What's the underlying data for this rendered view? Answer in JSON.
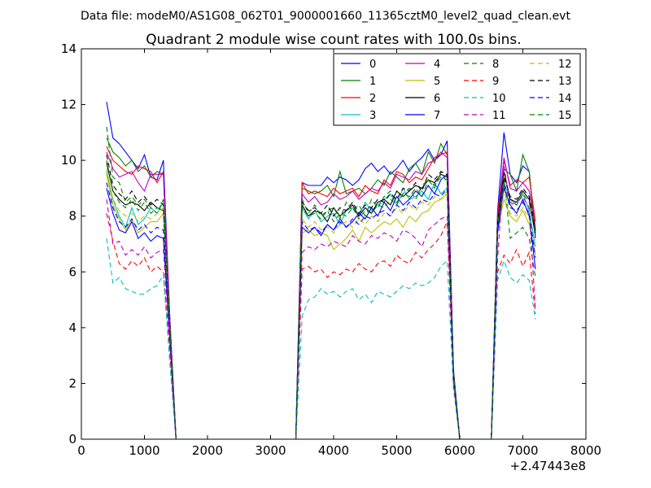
{
  "header": {
    "data_file_label": "Data file: modeM0/AS1G08_062T01_9000001660_11365cztM0_level2_quad_clean.evt"
  },
  "chart_data": {
    "type": "line",
    "title": "Quadrant 2 module wise count rates with 100.0s bins.",
    "xlabel": "",
    "ylabel": "",
    "xlim": [
      0,
      8000
    ],
    "ylim": [
      0,
      14
    ],
    "x_offset_label": "+2.47443e8",
    "xticks": [
      "0",
      "1000",
      "2000",
      "3000",
      "4000",
      "5000",
      "6000",
      "7000",
      "8000"
    ],
    "yticks": [
      "0",
      "2",
      "4",
      "6",
      "8",
      "10",
      "12",
      "14"
    ],
    "grid": false,
    "legend_position": "top-right",
    "legend_columns": 4,
    "x": [
      400,
      500,
      600,
      700,
      800,
      900,
      1000,
      1100,
      1200,
      1300,
      1400,
      1500,
      1600,
      1700,
      1800,
      1900,
      2000,
      2100,
      2200,
      2300,
      2400,
      2500,
      2600,
      2700,
      2800,
      2900,
      3000,
      3100,
      3200,
      3300,
      3400,
      3500,
      3600,
      3700,
      3800,
      3900,
      4000,
      4100,
      4200,
      4300,
      4400,
      4500,
      4600,
      4700,
      4800,
      4900,
      5000,
      5100,
      5200,
      5300,
      5400,
      5500,
      5600,
      5700,
      5800,
      5900,
      6000,
      6100,
      6200,
      6300,
      6400,
      6500,
      6600,
      6700,
      6800,
      6900,
      7000,
      7100,
      7200
    ],
    "series": [
      {
        "name": "0",
        "color": "#0000ff",
        "dash": "solid",
        "values": [
          12.1,
          10.8,
          10.6,
          10.3,
          10.0,
          9.7,
          10.2,
          9.4,
          9.3,
          10.0,
          4.5,
          0,
          0,
          0,
          0,
          0,
          0,
          0,
          0,
          0,
          0,
          0,
          0,
          0,
          0,
          0,
          0,
          0,
          0,
          0,
          0,
          9.2,
          9.1,
          9.1,
          9.1,
          9.4,
          9.2,
          9.4,
          9.3,
          9.1,
          9.3,
          9.7,
          9.9,
          9.6,
          9.8,
          9.5,
          9.7,
          10.0,
          9.6,
          9.9,
          10.1,
          10.4,
          10.0,
          10.2,
          10.7,
          2.5,
          0,
          0,
          0,
          0,
          0,
          0,
          8.2,
          11.0,
          9.5,
          9.2,
          9.8,
          9.6,
          7.2
        ]
      },
      {
        "name": "1",
        "color": "#008000",
        "dash": "solid",
        "values": [
          10.8,
          10.3,
          10.1,
          9.8,
          10.0,
          9.6,
          9.8,
          9.4,
          9.6,
          9.5,
          4.3,
          0,
          0,
          0,
          0,
          0,
          0,
          0,
          0,
          0,
          0,
          0,
          0,
          0,
          0,
          0,
          0,
          0,
          0,
          0,
          0,
          9.0,
          8.9,
          8.8,
          8.9,
          9.1,
          8.7,
          9.6,
          8.8,
          8.9,
          9.0,
          8.8,
          9.0,
          9.3,
          9.1,
          9.6,
          9.4,
          9.2,
          9.7,
          9.9,
          9.5,
          10.3,
          9.9,
          10.6,
          10.2,
          2.4,
          0,
          0,
          0,
          0,
          0,
          0,
          8.0,
          9.7,
          9.5,
          8.9,
          10.2,
          9.6,
          7.4
        ]
      },
      {
        "name": "2",
        "color": "#ff0000",
        "dash": "solid",
        "values": [
          10.5,
          10.0,
          9.8,
          9.6,
          9.5,
          9.8,
          9.7,
          9.6,
          9.2,
          9.6,
          4.4,
          0,
          0,
          0,
          0,
          0,
          0,
          0,
          0,
          0,
          0,
          0,
          0,
          0,
          0,
          0,
          0,
          0,
          0,
          0,
          0,
          9.2,
          8.8,
          8.9,
          8.8,
          8.7,
          9.0,
          8.8,
          8.9,
          9.0,
          8.7,
          9.1,
          8.9,
          8.8,
          9.3,
          9.1,
          9.6,
          9.5,
          9.2,
          9.4,
          9.3,
          9.7,
          10.1,
          10.2,
          10.3,
          2.4,
          0,
          0,
          0,
          0,
          0,
          0,
          8.1,
          10.0,
          9.1,
          9.3,
          9.2,
          9.4,
          7.8
        ]
      },
      {
        "name": "3",
        "color": "#00bfbf",
        "dash": "solid",
        "values": [
          9.6,
          8.6,
          8.0,
          7.6,
          8.3,
          7.7,
          7.9,
          8.3,
          8.1,
          8.5,
          4.0,
          0,
          0,
          0,
          0,
          0,
          0,
          0,
          0,
          0,
          0,
          0,
          0,
          0,
          0,
          0,
          0,
          0,
          0,
          0,
          0,
          8.3,
          7.9,
          8.2,
          7.8,
          8.0,
          8.1,
          7.7,
          8.2,
          8.3,
          8.0,
          8.5,
          8.2,
          8.4,
          8.6,
          8.8,
          8.4,
          9.0,
          8.6,
          8.7,
          8.9,
          8.6,
          9.2,
          8.8,
          9.0,
          2.2,
          0,
          0,
          0,
          0,
          0,
          0,
          7.9,
          9.2,
          8.6,
          8.4,
          8.8,
          8.2,
          6.9
        ]
      },
      {
        "name": "4",
        "color": "#bf00bf",
        "dash": "solid",
        "values": [
          10.3,
          9.7,
          9.4,
          9.5,
          9.6,
          9.2,
          8.9,
          9.5,
          9.5,
          9.5,
          4.3,
          0,
          0,
          0,
          0,
          0,
          0,
          0,
          0,
          0,
          0,
          0,
          0,
          0,
          0,
          0,
          0,
          0,
          0,
          0,
          0,
          8.8,
          8.5,
          8.7,
          8.4,
          8.5,
          8.8,
          8.6,
          8.7,
          8.9,
          8.6,
          8.8,
          9.0,
          8.9,
          9.2,
          9.0,
          9.5,
          9.4,
          9.3,
          9.6,
          9.5,
          9.9,
          10.0,
          10.3,
          10.1,
          2.3,
          0,
          0,
          0,
          0,
          0,
          0,
          7.8,
          10.1,
          9.0,
          8.9,
          9.2,
          8.9,
          7.6
        ]
      },
      {
        "name": "5",
        "color": "#bfbf00",
        "dash": "solid",
        "values": [
          9.5,
          8.4,
          7.9,
          7.5,
          7.9,
          7.4,
          7.6,
          7.8,
          7.8,
          8.1,
          3.8,
          0,
          0,
          0,
          0,
          0,
          0,
          0,
          0,
          0,
          0,
          0,
          0,
          0,
          0,
          0,
          0,
          0,
          0,
          0,
          0,
          7.4,
          7.5,
          7.3,
          7.4,
          7.3,
          6.8,
          7.0,
          7.2,
          7.5,
          7.1,
          7.6,
          7.4,
          7.6,
          7.8,
          7.7,
          7.9,
          7.6,
          8.0,
          7.8,
          8.1,
          8.2,
          8.5,
          8.6,
          8.8,
          2.1,
          0,
          0,
          0,
          0,
          0,
          0,
          7.5,
          8.6,
          8.0,
          7.8,
          8.2,
          7.7,
          6.6
        ]
      },
      {
        "name": "6",
        "color": "#000000",
        "dash": "solid",
        "values": [
          9.9,
          8.9,
          8.6,
          8.4,
          8.5,
          8.4,
          8.2,
          8.5,
          8.3,
          8.2,
          4.1,
          0,
          0,
          0,
          0,
          0,
          0,
          0,
          0,
          0,
          0,
          0,
          0,
          0,
          0,
          0,
          0,
          0,
          0,
          0,
          0,
          8.4,
          8.0,
          8.2,
          8.1,
          7.8,
          8.3,
          8.0,
          8.2,
          8.4,
          8.0,
          8.3,
          8.1,
          8.5,
          8.6,
          8.4,
          8.9,
          8.7,
          8.9,
          9.1,
          9.0,
          9.3,
          9.2,
          9.5,
          9.4,
          2.2,
          0,
          0,
          0,
          0,
          0,
          0,
          7.7,
          9.6,
          8.6,
          8.5,
          8.9,
          8.6,
          7.3
        ]
      },
      {
        "name": "7",
        "color": "#0000ff",
        "dash": "solid",
        "values": [
          9.0,
          8.1,
          7.5,
          7.4,
          7.8,
          7.2,
          7.4,
          7.1,
          7.3,
          7.2,
          3.7,
          0,
          0,
          0,
          0,
          0,
          0,
          0,
          0,
          0,
          0,
          0,
          0,
          0,
          0,
          0,
          0,
          0,
          0,
          0,
          0,
          7.6,
          7.4,
          7.6,
          7.3,
          7.7,
          7.5,
          7.9,
          7.6,
          7.8,
          8.1,
          7.9,
          8.3,
          8.0,
          8.5,
          8.2,
          8.7,
          8.4,
          8.6,
          8.9,
          8.7,
          9.1,
          8.8,
          9.3,
          9.5,
          2.3,
          0,
          0,
          0,
          0,
          0,
          0,
          7.4,
          9.0,
          8.4,
          8.1,
          8.6,
          8.0,
          6.1
        ]
      },
      {
        "name": "8",
        "color": "#008000",
        "dash": "dashed",
        "values": [
          11.2,
          9.4,
          9.2,
          8.5,
          8.7,
          8.4,
          8.6,
          8.3,
          8.1,
          8.6,
          4.2,
          0,
          0,
          0,
          0,
          0,
          0,
          0,
          0,
          0,
          0,
          0,
          0,
          0,
          0,
          0,
          0,
          0,
          0,
          0,
          0,
          8.6,
          8.1,
          8.4,
          8.0,
          8.2,
          8.3,
          7.9,
          8.5,
          8.2,
          8.4,
          8.0,
          8.6,
          8.3,
          8.7,
          8.9,
          8.5,
          8.8,
          9.0,
          8.6,
          9.1,
          9.3,
          9.0,
          9.6,
          9.2,
          2.3,
          0,
          0,
          0,
          0,
          0,
          0,
          7.6,
          9.4,
          7.2,
          7.4,
          7.6,
          7.2,
          5.8
        ]
      },
      {
        "name": "9",
        "color": "#ff0000",
        "dash": "dashed",
        "values": [
          8.1,
          7.1,
          6.3,
          6.1,
          6.4,
          6.2,
          6.5,
          6.0,
          6.2,
          6.0,
          3.2,
          0,
          0,
          0,
          0,
          0,
          0,
          0,
          0,
          0,
          0,
          0,
          0,
          0,
          0,
          0,
          0,
          0,
          0,
          0,
          0,
          6.1,
          6.2,
          6.0,
          6.1,
          5.8,
          6.0,
          5.9,
          6.1,
          6.0,
          6.3,
          6.1,
          6.0,
          6.3,
          6.4,
          6.2,
          6.6,
          6.4,
          6.3,
          6.7,
          6.5,
          6.8,
          7.0,
          7.3,
          7.8,
          2.0,
          0,
          0,
          0,
          0,
          0,
          0,
          6.0,
          6.6,
          6.3,
          6.8,
          6.2,
          6.7,
          4.5
        ]
      },
      {
        "name": "10",
        "color": "#00bfbf",
        "dash": "dashed",
        "values": [
          7.2,
          5.6,
          5.8,
          5.4,
          5.3,
          5.2,
          5.2,
          5.4,
          5.5,
          5.9,
          2.8,
          0,
          0,
          0,
          0,
          0,
          0,
          0,
          0,
          0,
          0,
          0,
          0,
          0,
          0,
          0,
          0,
          0,
          0,
          0,
          0,
          4.4,
          5.0,
          5.1,
          5.4,
          5.2,
          5.3,
          5.1,
          5.3,
          5.4,
          5.0,
          5.2,
          4.9,
          5.3,
          5.2,
          5.1,
          5.3,
          5.5,
          5.4,
          5.6,
          5.5,
          5.6,
          5.8,
          6.2,
          6.4,
          1.8,
          0,
          0,
          0,
          0,
          0,
          0,
          5.7,
          6.4,
          5.8,
          5.6,
          5.9,
          5.7,
          4.3
        ]
      },
      {
        "name": "11",
        "color": "#bf00bf",
        "dash": "dashed",
        "values": [
          8.6,
          7.0,
          7.1,
          6.6,
          6.8,
          6.6,
          6.9,
          6.5,
          6.7,
          6.8,
          3.4,
          0,
          0,
          0,
          0,
          0,
          0,
          0,
          0,
          0,
          0,
          0,
          0,
          0,
          0,
          0,
          0,
          0,
          0,
          0,
          0,
          6.7,
          6.9,
          6.8,
          7.0,
          6.9,
          7.1,
          7.0,
          6.9,
          7.3,
          7.1,
          7.0,
          7.3,
          7.2,
          7.4,
          7.3,
          7.1,
          7.5,
          7.4,
          7.2,
          6.9,
          7.5,
          7.7,
          7.9,
          8.0,
          2.0,
          0,
          0,
          0,
          0,
          0,
          0,
          6.5,
          9.8,
          8.4,
          8.5,
          8.7,
          8.3,
          4.6
        ]
      },
      {
        "name": "12",
        "color": "#bfbf00",
        "dash": "dashed",
        "values": [
          9.7,
          8.6,
          8.2,
          8.0,
          8.1,
          7.8,
          8.0,
          7.9,
          8.1,
          8.3,
          4.0,
          0,
          0,
          0,
          0,
          0,
          0,
          0,
          0,
          0,
          0,
          0,
          0,
          0,
          0,
          0,
          0,
          0,
          0,
          0,
          0,
          7.9,
          7.6,
          7.8,
          7.5,
          7.6,
          7.4,
          7.7,
          7.8,
          7.6,
          7.9,
          7.7,
          8.0,
          7.8,
          8.1,
          8.0,
          8.3,
          8.1,
          8.4,
          8.2,
          8.5,
          8.4,
          8.7,
          8.6,
          8.9,
          2.2,
          0,
          0,
          0,
          0,
          0,
          0,
          7.7,
          8.9,
          8.1,
          8.0,
          8.3,
          7.9,
          6.8
        ]
      },
      {
        "name": "13",
        "color": "#000000",
        "dash": "dashed",
        "values": [
          10.2,
          9.1,
          8.8,
          8.6,
          8.9,
          8.5,
          8.7,
          8.4,
          8.6,
          8.4,
          4.2,
          0,
          0,
          0,
          0,
          0,
          0,
          0,
          0,
          0,
          0,
          0,
          0,
          0,
          0,
          0,
          0,
          0,
          0,
          0,
          0,
          8.5,
          8.2,
          8.3,
          8.1,
          8.4,
          8.0,
          8.3,
          8.2,
          8.5,
          8.1,
          8.4,
          8.3,
          8.6,
          8.5,
          8.8,
          8.6,
          9.0,
          8.9,
          9.2,
          8.9,
          9.5,
          9.3,
          9.6,
          9.5,
          2.3,
          0,
          0,
          0,
          0,
          0,
          0,
          7.8,
          9.4,
          8.7,
          8.6,
          9.0,
          8.7,
          7.5
        ]
      },
      {
        "name": "14",
        "color": "#0000ff",
        "dash": "dashed",
        "values": [
          9.2,
          8.3,
          7.8,
          7.6,
          7.9,
          7.5,
          7.7,
          7.4,
          7.6,
          7.5,
          3.8,
          0,
          0,
          0,
          0,
          0,
          0,
          0,
          0,
          0,
          0,
          0,
          0,
          0,
          0,
          0,
          0,
          0,
          0,
          0,
          0,
          7.8,
          7.5,
          7.6,
          7.4,
          7.7,
          7.5,
          7.8,
          7.6,
          7.9,
          7.7,
          8.0,
          7.9,
          8.1,
          8.2,
          8.0,
          8.4,
          8.2,
          8.5,
          8.3,
          8.6,
          8.5,
          8.8,
          8.7,
          9.0,
          2.2,
          0,
          0,
          0,
          0,
          0,
          0,
          7.5,
          9.1,
          8.3,
          8.2,
          8.5,
          8.1,
          6.5
        ]
      },
      {
        "name": "15",
        "color": "#008000",
        "dash": "dashed",
        "values": [
          10.0,
          8.9,
          8.5,
          8.3,
          8.6,
          8.2,
          8.5,
          8.1,
          8.3,
          8.2,
          4.1,
          0,
          0,
          0,
          0,
          0,
          0,
          0,
          0,
          0,
          0,
          0,
          0,
          0,
          0,
          0,
          0,
          0,
          0,
          0,
          0,
          8.3,
          8.0,
          8.1,
          7.9,
          8.2,
          7.8,
          8.1,
          8.0,
          8.3,
          7.9,
          8.2,
          8.1,
          8.4,
          8.3,
          8.6,
          8.4,
          8.8,
          8.7,
          9.0,
          8.7,
          9.3,
          9.1,
          9.4,
          9.3,
          2.3,
          0,
          0,
          0,
          0,
          0,
          0,
          7.7,
          9.2,
          8.5,
          8.4,
          8.8,
          8.5,
          7.3
        ]
      }
    ]
  }
}
